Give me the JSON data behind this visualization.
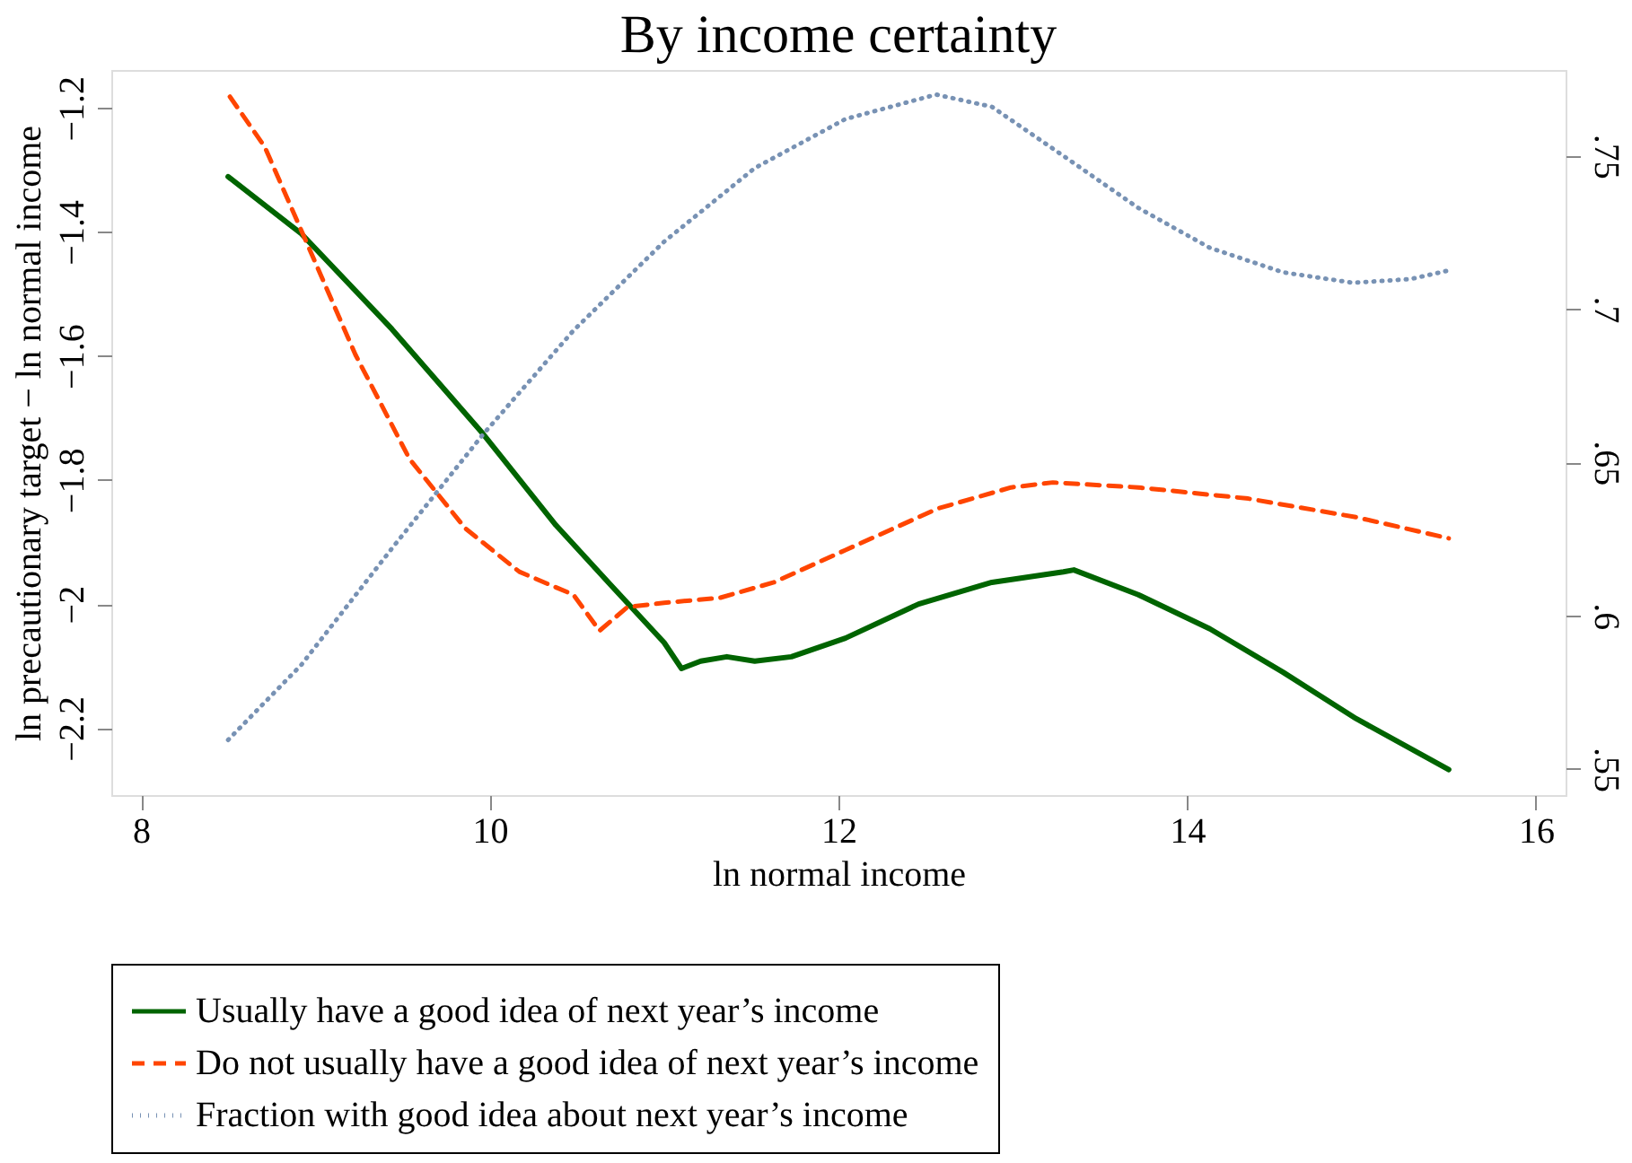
{
  "chart_data": {
    "type": "line",
    "title": "By income certainty",
    "xlabel": "ln normal income",
    "ylabel": "ln precautionary target − ln normal income",
    "xlim": [
      7.83,
      16.17
    ],
    "xticks": [
      8,
      10,
      12,
      14,
      16
    ],
    "ylim": [
      -2.308,
      -1.139
    ],
    "yticks": [
      {
        "value": -2.2,
        "label": "−2.2"
      },
      {
        "value": -2,
        "label": "−2"
      },
      {
        "value": -1.8,
        "label": "−1.8"
      },
      {
        "value": -1.6,
        "label": "−1.6"
      },
      {
        "value": -1.4,
        "label": "−1.4"
      },
      {
        "value": -1.2,
        "label": "−1.2"
      }
    ],
    "y2lim": [
      0.5415,
      0.778
    ],
    "y2ticks": [
      {
        "value": 0.55,
        "label": ".55"
      },
      {
        "value": 0.6,
        "label": ".6"
      },
      {
        "value": 0.65,
        "label": ".65"
      },
      {
        "value": 0.7,
        "label": ".7"
      },
      {
        "value": 0.75,
        "label": ".75"
      }
    ],
    "grid": false,
    "legend": "bottom",
    "marker": "none",
    "series": [
      {
        "name": "Usually have a good idea of next year’s income",
        "color": "#006400",
        "line_style": "solid",
        "x": [
          8.5,
          8.92,
          9.44,
          9.96,
          10.38,
          10.69,
          11.0,
          11.1,
          11.21,
          11.36,
          11.52,
          11.73,
          12.04,
          12.46,
          12.88,
          13.29,
          13.35,
          13.72,
          14.13,
          14.55,
          14.97,
          15.5
        ],
        "values": [
          -1.311,
          -1.403,
          -1.557,
          -1.725,
          -1.873,
          -1.968,
          -2.062,
          -2.104,
          -2.092,
          -2.085,
          -2.092,
          -2.085,
          -2.055,
          -2.0,
          -1.965,
          -1.948,
          -1.945,
          -1.985,
          -2.04,
          -2.11,
          -2.185,
          -2.267
        ]
      },
      {
        "name": "Do not usually have a good idea of next year’s income",
        "color": "#ff4500",
        "line_style": "dashed",
        "x": [
          8.51,
          8.71,
          8.97,
          9.23,
          9.54,
          9.86,
          10.17,
          10.48,
          10.63,
          10.79,
          11.0,
          11.32,
          11.63,
          12.04,
          12.57,
          12.99,
          13.23,
          13.72,
          14.35,
          14.97,
          15.5
        ],
        "values": [
          -1.182,
          -1.263,
          -1.43,
          -1.598,
          -1.766,
          -1.878,
          -1.948,
          -1.985,
          -2.043,
          -2.005,
          -1.998,
          -1.99,
          -1.965,
          -1.913,
          -1.846,
          -1.812,
          -1.804,
          -1.812,
          -1.83,
          -1.86,
          -1.894
        ]
      },
      {
        "name": "Fraction with good idea about next year’s income",
        "color": "#7892b4",
        "line_style": "dotted",
        "axis": "y2",
        "x": [
          8.5,
          8.92,
          9.44,
          9.96,
          10.48,
          11.0,
          11.52,
          12.04,
          12.56,
          12.88,
          13.29,
          13.72,
          14.13,
          14.55,
          14.95,
          15.28,
          15.49
        ],
        "values": [
          0.5595,
          0.584,
          0.622,
          0.659,
          0.693,
          0.722,
          0.746,
          0.762,
          0.77,
          0.766,
          0.75,
          0.733,
          0.72,
          0.712,
          0.7086,
          0.7098,
          0.7125
        ]
      }
    ]
  }
}
